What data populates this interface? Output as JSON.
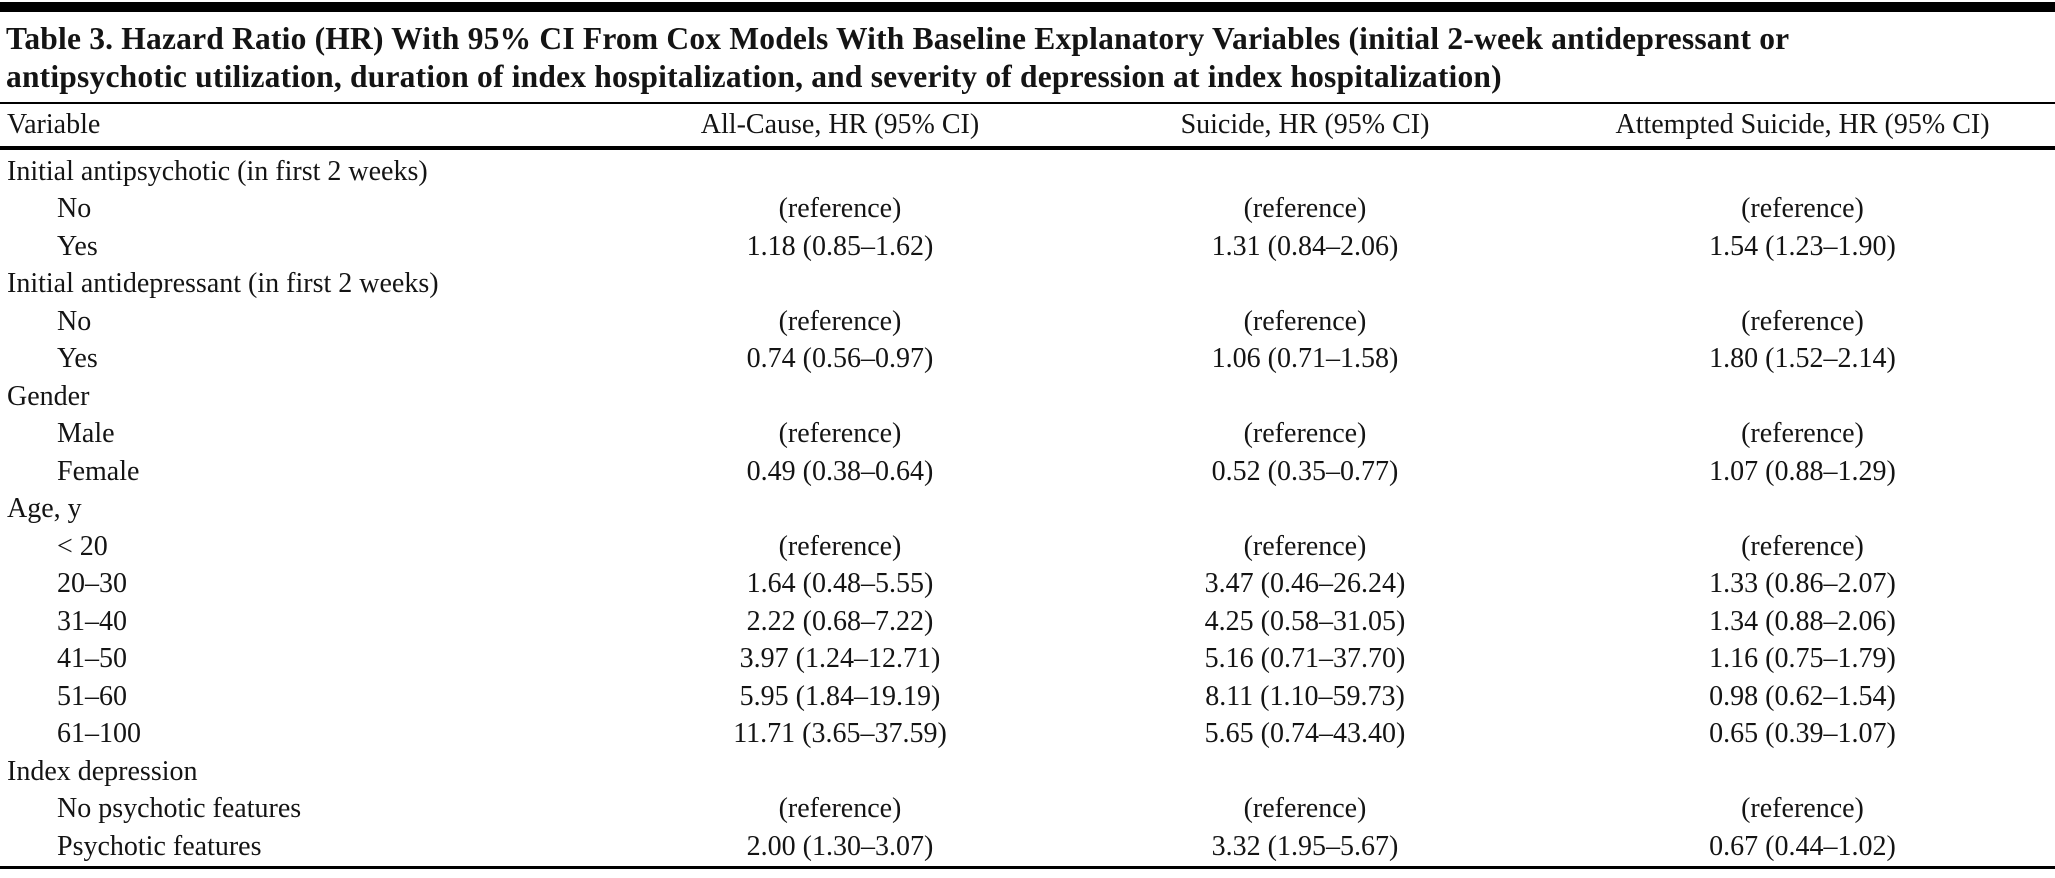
{
  "table": {
    "title_line1": "Table 3. Hazard Ratio (HR) With 95% CI From Cox Models With Baseline Explanatory Variables (initial 2-week antidepressant or",
    "title_line2": "antipsychotic utilization, duration of index hospitalization, and severity of depression at index hospitalization)",
    "columns": [
      "Variable",
      "All-Cause, HR (95% CI)",
      "Suicide, HR (95% CI)",
      "Attempted Suicide, HR (95% CI)"
    ],
    "rows": [
      {
        "label": "Initial antipsychotic (in first 2 weeks)",
        "indent": false,
        "values": [
          "",
          "",
          ""
        ]
      },
      {
        "label": "No",
        "indent": true,
        "values": [
          "(reference)",
          "(reference)",
          "(reference)"
        ]
      },
      {
        "label": "Yes",
        "indent": true,
        "values": [
          "1.18 (0.85–1.62)",
          "1.31 (0.84–2.06)",
          "1.54 (1.23–1.90)"
        ]
      },
      {
        "label": "Initial antidepressant (in first 2 weeks)",
        "indent": false,
        "values": [
          "",
          "",
          ""
        ]
      },
      {
        "label": "No",
        "indent": true,
        "values": [
          "(reference)",
          "(reference)",
          "(reference)"
        ]
      },
      {
        "label": "Yes",
        "indent": true,
        "values": [
          "0.74 (0.56–0.97)",
          "1.06 (0.71–1.58)",
          "1.80 (1.52–2.14)"
        ]
      },
      {
        "label": "Gender",
        "indent": false,
        "values": [
          "",
          "",
          ""
        ]
      },
      {
        "label": "Male",
        "indent": true,
        "values": [
          "(reference)",
          "(reference)",
          "(reference)"
        ]
      },
      {
        "label": "Female",
        "indent": true,
        "values": [
          "0.49 (0.38–0.64)",
          "0.52 (0.35–0.77)",
          "1.07 (0.88–1.29)"
        ]
      },
      {
        "label": "Age, y",
        "indent": false,
        "values": [
          "",
          "",
          ""
        ]
      },
      {
        "label": "< 20",
        "indent": true,
        "values": [
          "(reference)",
          "(reference)",
          "(reference)"
        ]
      },
      {
        "label": "20–30",
        "indent": true,
        "values": [
          "1.64 (0.48–5.55)",
          "3.47 (0.46–26.24)",
          "1.33 (0.86–2.07)"
        ]
      },
      {
        "label": "31–40",
        "indent": true,
        "values": [
          "2.22 (0.68–7.22)",
          "4.25 (0.58–31.05)",
          "1.34 (0.88–2.06)"
        ]
      },
      {
        "label": "41–50",
        "indent": true,
        "values": [
          "3.97 (1.24–12.71)",
          "5.16 (0.71–37.70)",
          "1.16 (0.75–1.79)"
        ]
      },
      {
        "label": "51–60",
        "indent": true,
        "values": [
          "5.95 (1.84–19.19)",
          "8.11 (1.10–59.73)",
          "0.98 (0.62–1.54)"
        ]
      },
      {
        "label": "61–100",
        "indent": true,
        "values": [
          "11.71 (3.65–37.59)",
          "5.65 (0.74–43.40)",
          "0.65 (0.39–1.07)"
        ]
      },
      {
        "label": "Index depression",
        "indent": false,
        "values": [
          "",
          "",
          ""
        ]
      },
      {
        "label": "No psychotic features",
        "indent": true,
        "values": [
          "(reference)",
          "(reference)",
          "(reference)"
        ]
      },
      {
        "label": "Psychotic features",
        "indent": true,
        "values": [
          "2.00 (1.30–3.07)",
          "3.32 (1.95–5.67)",
          "0.67 (0.44–1.02)"
        ]
      }
    ],
    "text_color": "#141414",
    "rule_color": "#000000"
  }
}
